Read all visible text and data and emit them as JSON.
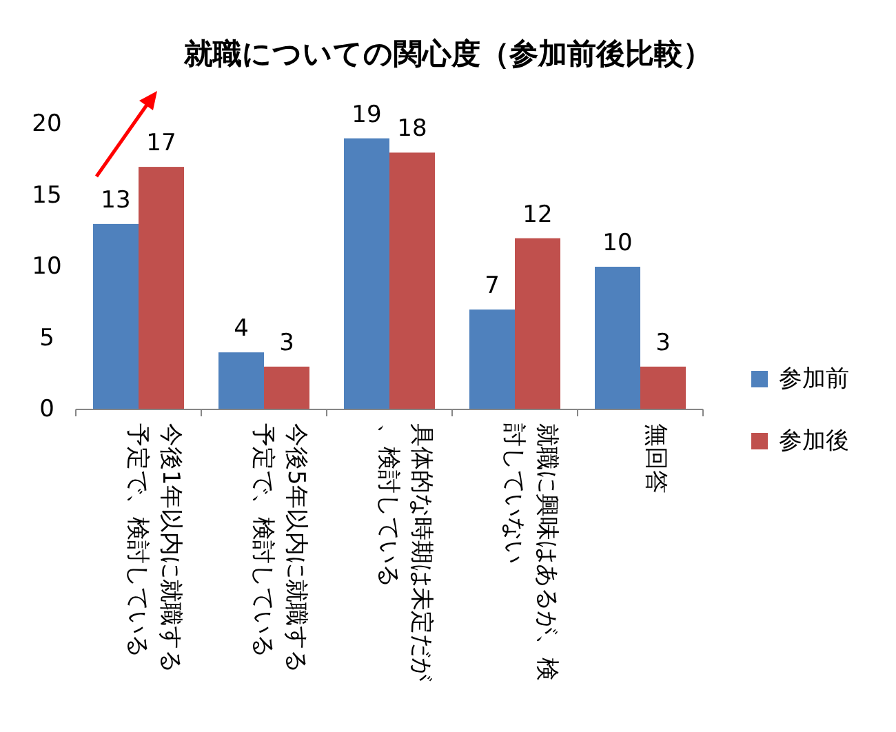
{
  "chart_data": {
    "type": "bar",
    "title": "就職についての関心度（参加前後比較）",
    "categories": [
      "今後1年以内に就職する予定で、検討している",
      "今後5年以内に就職する予定で、検討している",
      "具体的な時期は未定だが、検討している",
      "就職に興味はあるが、検討していない",
      "無回答"
    ],
    "series": [
      {
        "name": "参加前",
        "color": "#4f81bd",
        "values": [
          13,
          4,
          19,
          7,
          10
        ]
      },
      {
        "name": "参加後",
        "color": "#c0504d",
        "values": [
          17,
          3,
          18,
          12,
          3
        ]
      }
    ],
    "ylim": [
      0,
      20
    ],
    "yticks": [
      0,
      5,
      10,
      15,
      20
    ],
    "data_labels": true,
    "legend": "right",
    "grid": false
  }
}
